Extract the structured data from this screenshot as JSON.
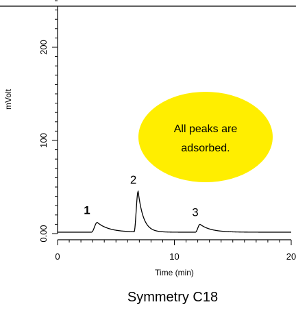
{
  "chart_data": {
    "type": "line",
    "xlabel": "Time (min)",
    "ylabel": "mVolt",
    "xlim": [
      0,
      20
    ],
    "ylim": [
      0,
      250
    ],
    "x_ticks": [
      0,
      10,
      20
    ],
    "x_tick_labels": [
      "0",
      "10",
      "20"
    ],
    "y_ticks": [
      0,
      100,
      200
    ],
    "y_tick_labels": [
      "0.00",
      "100",
      "200"
    ],
    "grid": false,
    "baseline_mv": 1.5,
    "peaks": [
      {
        "label": "1",
        "label_color": "#ee3311",
        "label_bold": true,
        "start": 2.9,
        "apex": 3.4,
        "height_mv": 10.5,
        "tail": 1.0
      },
      {
        "label": "2",
        "label_color": "#000000",
        "label_bold": false,
        "start": 6.55,
        "apex": 6.9,
        "height_mv": 43.5,
        "tail": 0.45
      },
      {
        "label": "3",
        "label_color": "#000000",
        "label_bold": false,
        "start": 11.8,
        "apex": 12.2,
        "height_mv": 8.5,
        "tail": 0.9
      }
    ],
    "callout": {
      "lines": [
        "All peaks are",
        "adsorbed."
      ],
      "fill": "#ffee00"
    },
    "caption": "Symmetry C18"
  }
}
